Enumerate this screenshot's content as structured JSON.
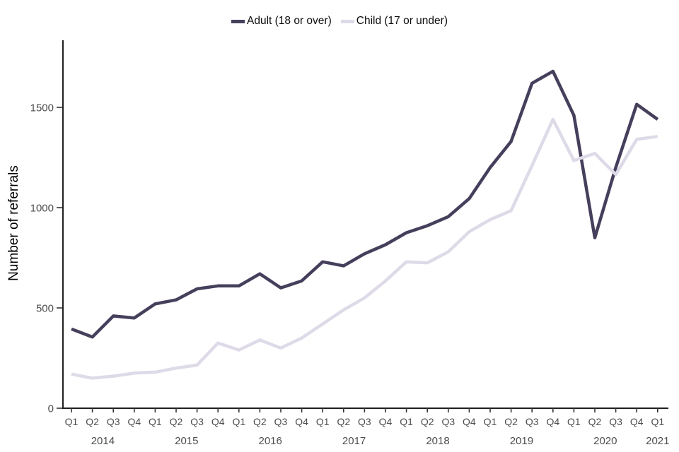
{
  "chart_data": {
    "type": "line",
    "title": "",
    "xlabel": "",
    "ylabel": "Number of referrals",
    "ylim": [
      0,
      1835
    ],
    "y_ticks": [
      0,
      500,
      1000,
      1500
    ],
    "grid": false,
    "legend_position": "top-center",
    "axis_text_color": "#4d4d4d",
    "years": [
      {
        "label": "2014",
        "quarters": [
          "Q1",
          "Q2",
          "Q3",
          "Q4"
        ]
      },
      {
        "label": "2015",
        "quarters": [
          "Q1",
          "Q2",
          "Q3",
          "Q4"
        ]
      },
      {
        "label": "2016",
        "quarters": [
          "Q1",
          "Q2",
          "Q3",
          "Q4"
        ]
      },
      {
        "label": "2017",
        "quarters": [
          "Q1",
          "Q2",
          "Q3",
          "Q4"
        ]
      },
      {
        "label": "2018",
        "quarters": [
          "Q1",
          "Q2",
          "Q3",
          "Q4"
        ]
      },
      {
        "label": "2019",
        "quarters": [
          "Q1",
          "Q2",
          "Q3",
          "Q4"
        ]
      },
      {
        "label": "2020",
        "quarters": [
          "Q1",
          "Q2",
          "Q3",
          "Q4"
        ]
      },
      {
        "label": "2021",
        "quarters": [
          "Q1"
        ]
      }
    ],
    "series": [
      {
        "name": "Adult (18 or over)",
        "key": "adult",
        "color": "#463f5c",
        "values": [
          395,
          355,
          460,
          450,
          520,
          540,
          595,
          610,
          610,
          670,
          600,
          635,
          730,
          710,
          770,
          815,
          875,
          910,
          955,
          1045,
          1200,
          1330,
          1620,
          1680,
          1460,
          850,
          1200,
          1515,
          1440
        ]
      },
      {
        "name": "Child (17 or under)",
        "key": "child",
        "color": "#dedae8",
        "values": [
          170,
          150,
          160,
          175,
          180,
          200,
          215,
          325,
          290,
          340,
          300,
          350,
          420,
          490,
          550,
          635,
          730,
          725,
          780,
          880,
          940,
          985,
          1210,
          1440,
          1235,
          1270,
          1165,
          1340,
          1355
        ]
      }
    ]
  }
}
